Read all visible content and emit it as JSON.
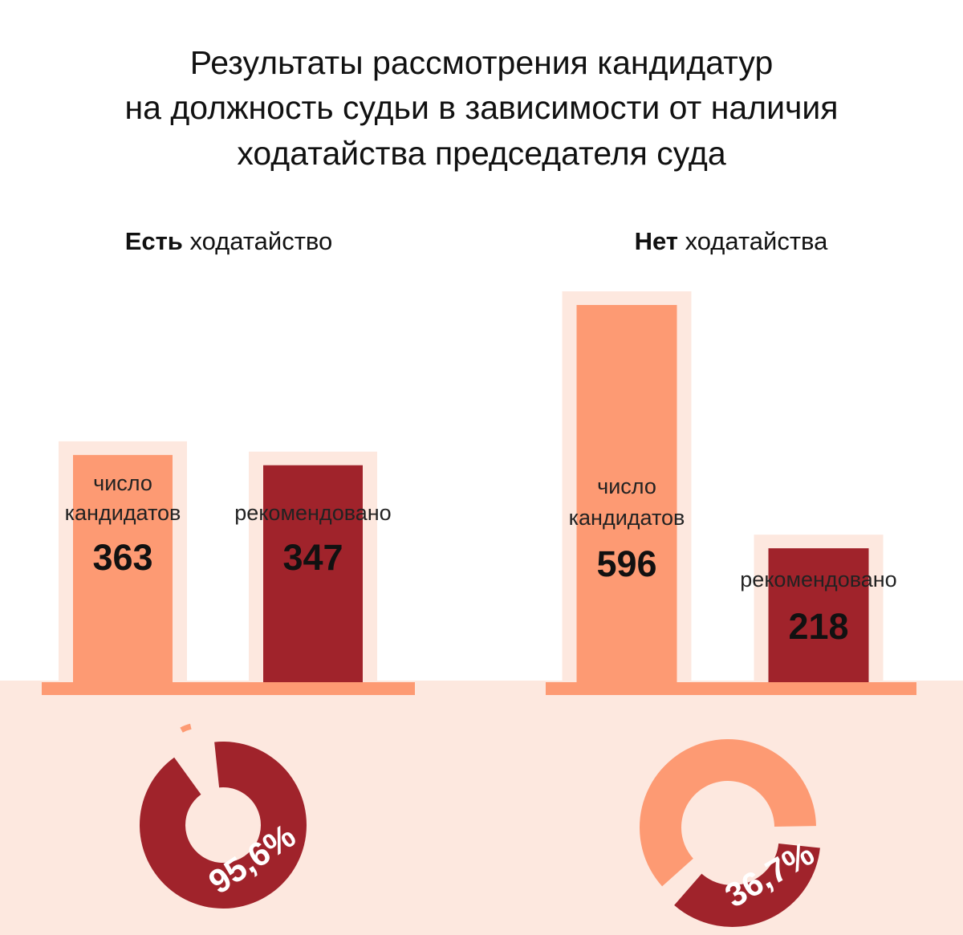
{
  "title_lines": [
    "Результаты рассмотрения кандидатур",
    "на должность судьи в зависимости от наличия",
    "ходатайства председателя суда"
  ],
  "colors": {
    "light": "#fd9a73",
    "dark": "#a0232b",
    "halo": "#fde8df",
    "ground": "#fde8df",
    "baseline": "#fd9a73"
  },
  "chart_data": [
    {
      "type": "bar",
      "group_strong": "Есть",
      "group_rest": " ходатайство",
      "categories": [
        "число кандидатов",
        "рекомендовано"
      ],
      "label_lines": [
        [
          "число",
          "кандидатов"
        ],
        [
          "рекомендовано"
        ]
      ],
      "values": [
        363,
        347
      ],
      "value_labels": [
        "363",
        "347"
      ],
      "ylim": [
        0,
        600
      ],
      "share_percent": 95.6,
      "share_label": "95,6%"
    },
    {
      "type": "bar",
      "group_strong": "Нет",
      "group_rest": " ходатайства",
      "categories": [
        "число кандидатов",
        "рекомендовано"
      ],
      "label_lines": [
        [
          "число",
          "кандидатов"
        ],
        [
          "рекомендовано"
        ]
      ],
      "values": [
        596,
        218
      ],
      "value_labels": [
        "596",
        "218"
      ],
      "ylim": [
        0,
        600
      ],
      "share_percent": 36.7,
      "share_label": "36,7%"
    }
  ]
}
